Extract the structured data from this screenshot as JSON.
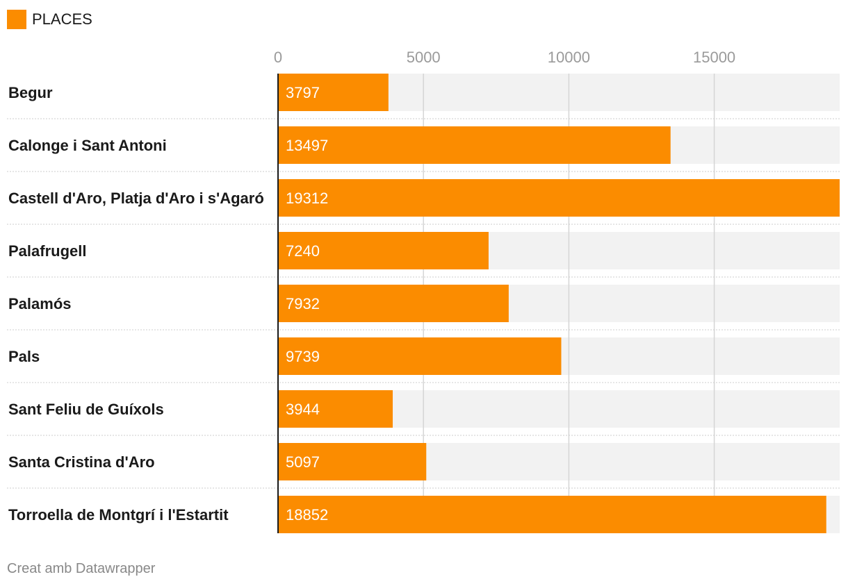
{
  "legend": {
    "label": "PLACES"
  },
  "footer": {
    "credit": "Creat amb Datawrapper"
  },
  "colors": {
    "bar": "#fb8c00",
    "track": "#f2f2f2",
    "grid": "#d5d5d5",
    "separator": "#cccccc",
    "axis": "#1a1a1a"
  },
  "chart_data": {
    "type": "bar",
    "orientation": "horizontal",
    "categories": [
      "Begur",
      "Calonge i Sant Antoni",
      "Castell d'Aro, Platja d'Aro i s'Agaró",
      "Palafrugell",
      "Palamós",
      "Pals",
      "Sant Feliu de Guíxols",
      "Santa Cristina d'Aro",
      "Torroella de Montgrí i l'Estartit"
    ],
    "series": [
      {
        "name": "PLACES",
        "values": [
          3797,
          13497,
          19312,
          7240,
          7932,
          9739,
          3944,
          5097,
          18852
        ]
      }
    ],
    "xticks": [
      0,
      5000,
      10000,
      15000
    ],
    "xlim": [
      0,
      19312
    ],
    "grid": true,
    "legend_position": "top-left"
  }
}
